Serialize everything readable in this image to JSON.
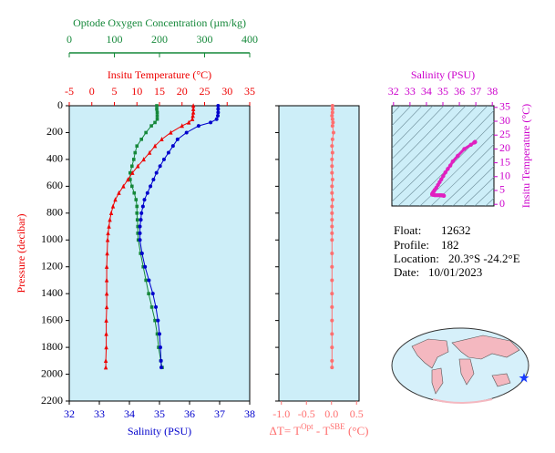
{
  "chart_data": [
    {
      "type": "profile",
      "ylabel": "Pressure (decibar)",
      "ylim": [
        0,
        2200
      ],
      "y_inverted": true,
      "yticks": [
        0,
        200,
        400,
        600,
        800,
        1000,
        1200,
        1400,
        1600,
        1800,
        2000,
        2200
      ],
      "background": "#cdeef8",
      "y": [
        0,
        25,
        50,
        75,
        100,
        125,
        150,
        200,
        250,
        300,
        350,
        400,
        450,
        500,
        550,
        600,
        650,
        700,
        750,
        800,
        850,
        900,
        950,
        1000,
        1100,
        1200,
        1300,
        1400,
        1500,
        1600,
        1700,
        1800,
        1900,
        1950
      ],
      "series": [
        {
          "name": "Optode Oxygen Concentration (µm/kg)",
          "color": "#15883a",
          "marker": "square",
          "axis": "top2",
          "xlim": [
            0,
            400
          ],
          "xticks": [
            0,
            100,
            200,
            300,
            400
          ],
          "values": [
            194,
            194,
            195,
            195,
            195,
            190,
            182,
            170,
            160,
            150,
            146,
            143,
            139,
            135,
            135,
            139,
            144,
            148,
            150,
            150,
            151,
            152,
            152,
            153,
            158,
            164,
            170,
            176,
            183,
            190,
            195,
            198,
            203,
            206
          ]
        },
        {
          "name": "Insitu Temperature (°C)",
          "color": "#ee0000",
          "marker": "triangle",
          "axis": "top",
          "xlim": [
            -5,
            35
          ],
          "xticks": [
            -5,
            0,
            5,
            10,
            15,
            20,
            25,
            30,
            35
          ],
          "values": [
            22.5,
            22.5,
            22.5,
            22.4,
            22.3,
            21.5,
            20,
            17.5,
            15.5,
            14,
            12.8,
            11.5,
            10.2,
            9,
            8,
            7,
            6,
            5.2,
            4.7,
            4.3,
            4,
            3.8,
            3.6,
            3.5,
            3.4,
            3.3,
            3.3,
            3.3,
            3.3,
            3.2,
            3.2,
            3.2,
            3.1,
            3.1
          ]
        },
        {
          "name": "Salinity (PSU)",
          "color": "#0000cc",
          "marker": "circle",
          "axis": "bottom",
          "xlim": [
            32,
            38
          ],
          "xticks": [
            32,
            33,
            34,
            35,
            36,
            37,
            38
          ],
          "values": [
            36.95,
            36.95,
            36.95,
            36.94,
            36.9,
            36.7,
            36.3,
            35.9,
            35.6,
            35.45,
            35.3,
            35.15,
            35.02,
            34.9,
            34.8,
            34.7,
            34.6,
            34.5,
            34.45,
            34.4,
            34.38,
            34.35,
            34.35,
            34.35,
            34.42,
            34.52,
            34.65,
            34.78,
            34.88,
            34.95,
            35,
            35.03,
            35.05,
            35.06
          ]
        }
      ]
    },
    {
      "type": "profile",
      "ylim": [
        0,
        2200
      ],
      "y_inverted": true,
      "background": "#cdeef8",
      "xlabel_parts": [
        "ΔT= T",
        "Opt",
        " - T",
        "SBE",
        " (°C)"
      ],
      "y": [
        0,
        25,
        50,
        75,
        100,
        125,
        150,
        200,
        250,
        300,
        350,
        400,
        450,
        500,
        550,
        600,
        650,
        700,
        750,
        800,
        850,
        900,
        950,
        1000,
        1100,
        1200,
        1300,
        1400,
        1500,
        1600,
        1700,
        1800,
        1900,
        1950
      ],
      "series": [
        {
          "color": "#ff6f6f",
          "marker": "circle",
          "axis": "bottom",
          "xlim": [
            -1.05,
            0.55
          ],
          "xticks": [
            {
              "value": -1,
              "label": "-1.0"
            },
            {
              "value": -0.5,
              "label": "-0.5"
            },
            {
              "value": 0,
              "label": "0.0"
            },
            {
              "value": 0.5,
              "label": "0.5"
            }
          ],
          "values": [
            0.02,
            0.02,
            0.02,
            0.01,
            0.02,
            0.03,
            0.02,
            0.04,
            0.02,
            0.01,
            0.02,
            0.01,
            0.01,
            0.01,
            0.02,
            0.01,
            0.01,
            0.02,
            0.01,
            0.01,
            0.01,
            0.01,
            0.01,
            0.01,
            0.01,
            0.01,
            0.01,
            0.01,
            0.01,
            0.01,
            0.01,
            0.01,
            0.01,
            0.01
          ]
        }
      ]
    },
    {
      "type": "ts",
      "color": "#e020c0",
      "axis_color": "#cc00cc",
      "background": "#cdeef8",
      "xlabel": "Salinity (PSU)",
      "xlim": [
        31.9,
        38.1
      ],
      "xticks": [
        32,
        33,
        34,
        35,
        36,
        37,
        38
      ],
      "ylabel": "Insitu Temperature (°C)",
      "ylim": [
        -0.6,
        35.6
      ],
      "yticks": [
        0,
        5,
        10,
        15,
        20,
        25,
        30,
        35
      ]
    }
  ],
  "info": {
    "float_label": "Float:",
    "float": "12632",
    "profile_label": "Profile:",
    "profile": "182",
    "location_label": "Location:",
    "location": "20.3°S  -24.2°E",
    "date_label": "Date:",
    "date": "10/01/2023"
  }
}
